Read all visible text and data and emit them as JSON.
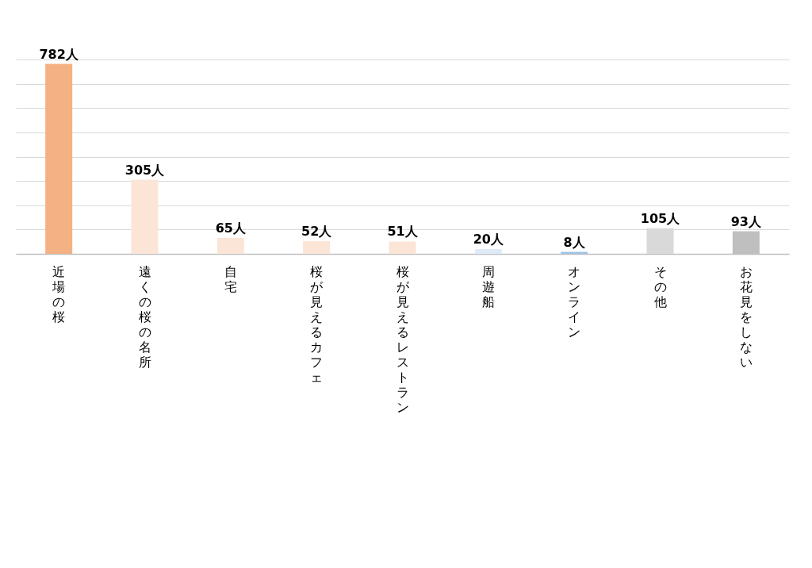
{
  "chart_data": {
    "type": "bar",
    "categories": [
      "近場の桜",
      "遠くの桜の名所",
      "自宅",
      "桜が見えるカフェ",
      "桜が見えるレストラン",
      "周遊船",
      "オンライン",
      "その他",
      "お花見をしない"
    ],
    "values": [
      782,
      305,
      65,
      52,
      51,
      20,
      8,
      105,
      93
    ],
    "colors": [
      "#f4b183",
      "#fbe5d6",
      "#fbe5d6",
      "#fbe5d6",
      "#fbe5d6",
      "#deebf7",
      "#9dc3e6",
      "#d9d9d9",
      "#bfbfbf"
    ],
    "value_labels": [
      "782人",
      "305人",
      "65人",
      "52人",
      "51人",
      "20人",
      "8人",
      "105人",
      "93人"
    ],
    "ylim": [
      0,
      800
    ],
    "grid": "y",
    "tick_labels": "x"
  }
}
